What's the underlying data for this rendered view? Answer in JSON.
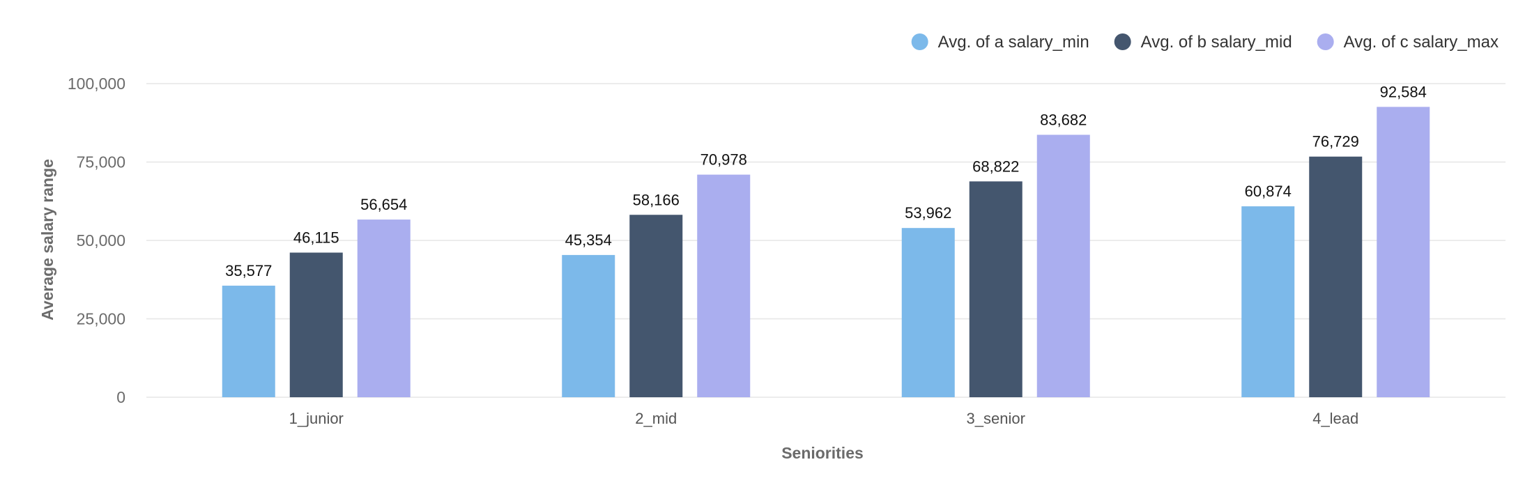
{
  "chart_data": {
    "type": "bar",
    "categories": [
      "1_junior",
      "2_mid",
      "3_senior",
      "4_lead"
    ],
    "series": [
      {
        "name": "Avg. of a salary_min",
        "color": "#7cb9ea",
        "values": [
          35577,
          45354,
          53962,
          60874
        ],
        "labels": [
          "35,577",
          "45,354",
          "53,962",
          "60,874"
        ]
      },
      {
        "name": "Avg. of b salary_mid",
        "color": "#44566e",
        "values": [
          46115,
          58166,
          68822,
          76729
        ],
        "labels": [
          "46,115",
          "58,166",
          "68,822",
          "76,729"
        ]
      },
      {
        "name": "Avg. of c salary_max",
        "color": "#aaaeef",
        "values": [
          56654,
          70978,
          83682,
          92584
        ],
        "labels": [
          "56,654",
          "70,978",
          "83,682",
          "92,584"
        ]
      }
    ],
    "xlabel": "Seniorities",
    "ylabel": "Average salary range",
    "ylim": [
      0,
      100000
    ],
    "yticks": [
      0,
      25000,
      50000,
      75000,
      100000
    ],
    "ytick_labels": [
      "0",
      "25,000",
      "50,000",
      "75,000",
      "100,000"
    ],
    "grid": true,
    "legend_position": "top-right"
  }
}
